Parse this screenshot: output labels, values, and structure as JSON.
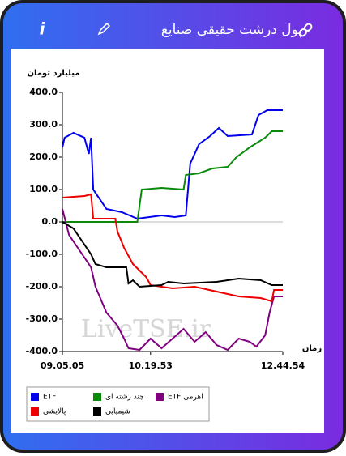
{
  "header": {
    "title": "پول درشت حقیقی صنایع",
    "info_icon": "i"
  },
  "chart_data": {
    "type": "line",
    "y_label": "میلیارد تومان",
    "x_label": "زمان",
    "watermark": "LiveTSE.ir",
    "xlim": [
      0,
      100
    ],
    "xticks": [
      {
        "value": 0,
        "label": "09.05.05"
      },
      {
        "value": 40,
        "label": "10.19.53"
      },
      {
        "value": 100,
        "label": "12.44.54"
      }
    ],
    "ylim": [
      -400,
      400
    ],
    "yticks": [
      {
        "value": 400,
        "label": "400.0"
      },
      {
        "value": 300,
        "label": "300.0"
      },
      {
        "value": 200,
        "label": "200.0"
      },
      {
        "value": 100,
        "label": "100.0"
      },
      {
        "value": 0,
        "label": "0.0"
      },
      {
        "value": -100,
        "label": "-100.0"
      },
      {
        "value": -200,
        "label": "-200.0"
      },
      {
        "value": -300,
        "label": "-300.0"
      },
      {
        "value": -400,
        "label": "-400.0"
      }
    ],
    "zero_line": true,
    "series": [
      {
        "name": "ETF",
        "color": "#0000ee",
        "x": [
          0,
          1,
          5,
          10,
          12,
          13,
          14,
          20,
          27,
          34,
          45,
          51,
          56,
          58,
          62,
          67,
          71,
          75,
          86,
          89,
          93,
          100
        ],
        "values": [
          230,
          260,
          275,
          260,
          210,
          260,
          100,
          40,
          30,
          10,
          20,
          15,
          20,
          180,
          240,
          265,
          290,
          265,
          270,
          330,
          345,
          345
        ]
      },
      {
        "name": "چند رشته ای",
        "color": "#0a8a0a",
        "x": [
          0,
          13,
          20,
          34,
          36,
          45,
          55,
          56,
          62,
          68,
          75,
          79,
          85,
          92,
          95,
          100
        ],
        "values": [
          0,
          0,
          0,
          0,
          100,
          105,
          100,
          145,
          150,
          165,
          170,
          200,
          230,
          260,
          280,
          280
        ]
      },
      {
        "name": "ETF اهرمی",
        "color": "#800080",
        "x": [
          0,
          3,
          10,
          13,
          15,
          20,
          25,
          28,
          30,
          35,
          40,
          45,
          50,
          55,
          60,
          65,
          70,
          75,
          80,
          85,
          88,
          92,
          94,
          96,
          100
        ],
        "values": [
          40,
          -40,
          -110,
          -140,
          -200,
          -280,
          -320,
          -360,
          -390,
          -395,
          -360,
          -390,
          -360,
          -330,
          -370,
          -340,
          -380,
          -395,
          -360,
          -370,
          -385,
          -350,
          -280,
          -230,
          -230
        ]
      },
      {
        "name": "پالایشی",
        "color": "#ee0000",
        "x": [
          0,
          10,
          13,
          14,
          24,
          25,
          28,
          32,
          38,
          40,
          50,
          60,
          70,
          80,
          90,
          95,
          96,
          100
        ],
        "values": [
          75,
          80,
          85,
          10,
          10,
          -30,
          -80,
          -130,
          -170,
          -195,
          -205,
          -200,
          -215,
          -230,
          -235,
          -245,
          -210,
          -210
        ]
      },
      {
        "name": "شیمیایی",
        "color": "#000000",
        "x": [
          0,
          5,
          10,
          13,
          15,
          20,
          29,
          30,
          32,
          35,
          45,
          48,
          55,
          70,
          80,
          90,
          95,
          100
        ],
        "values": [
          0,
          -20,
          -70,
          -100,
          -130,
          -140,
          -140,
          -190,
          -180,
          -200,
          -195,
          -185,
          -190,
          -185,
          -175,
          -180,
          -195,
          -195
        ]
      }
    ]
  }
}
